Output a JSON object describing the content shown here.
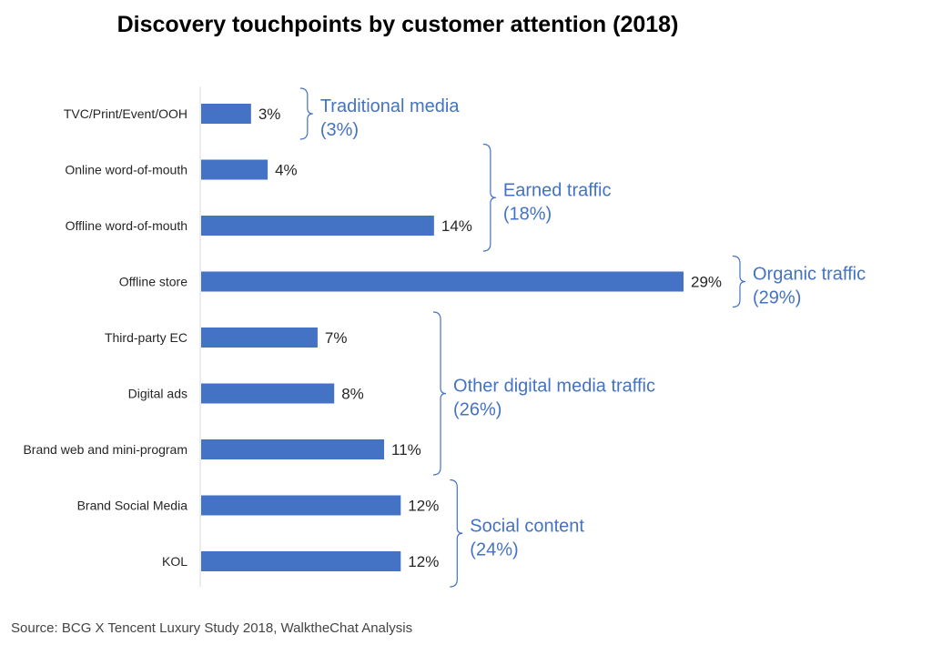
{
  "chart_data": {
    "type": "bar",
    "orientation": "horizontal",
    "title": "Discovery touchpoints by customer attention (2018)",
    "categories": [
      "TVC/Print/Event/OOH",
      "Online word-of-mouth",
      "Offline word-of-mouth",
      "Offline store",
      "Third-party EC",
      "Digital ads",
      "Brand web and mini-program",
      "Brand Social Media",
      "KOL"
    ],
    "values": [
      3,
      4,
      14,
      29,
      7,
      8,
      11,
      12,
      12
    ],
    "value_labels": [
      "3%",
      "4%",
      "14%",
      "29%",
      "7%",
      "8%",
      "11%",
      "12%",
      "12%"
    ],
    "xlim": [
      0,
      29
    ],
    "xlabel": "",
    "ylabel": "",
    "grid": false,
    "bar_color": "#4472c4",
    "group_color": "#4472c4",
    "groups": [
      {
        "label": "Traditional media",
        "share": "(3%)",
        "from": 0,
        "to": 0
      },
      {
        "label": "Earned traffic",
        "share": "(18%)",
        "from": 1,
        "to": 2
      },
      {
        "label": "Organic traffic",
        "share": "(29%)",
        "from": 3,
        "to": 3
      },
      {
        "label": "Other digital media traffic",
        "share": "(26%)",
        "from": 4,
        "to": 6
      },
      {
        "label": "Social content",
        "share": "(24%)",
        "from": 7,
        "to": 8
      }
    ]
  },
  "source": "Source: BCG X Tencent Luxury Study 2018, WalktheChat Analysis"
}
